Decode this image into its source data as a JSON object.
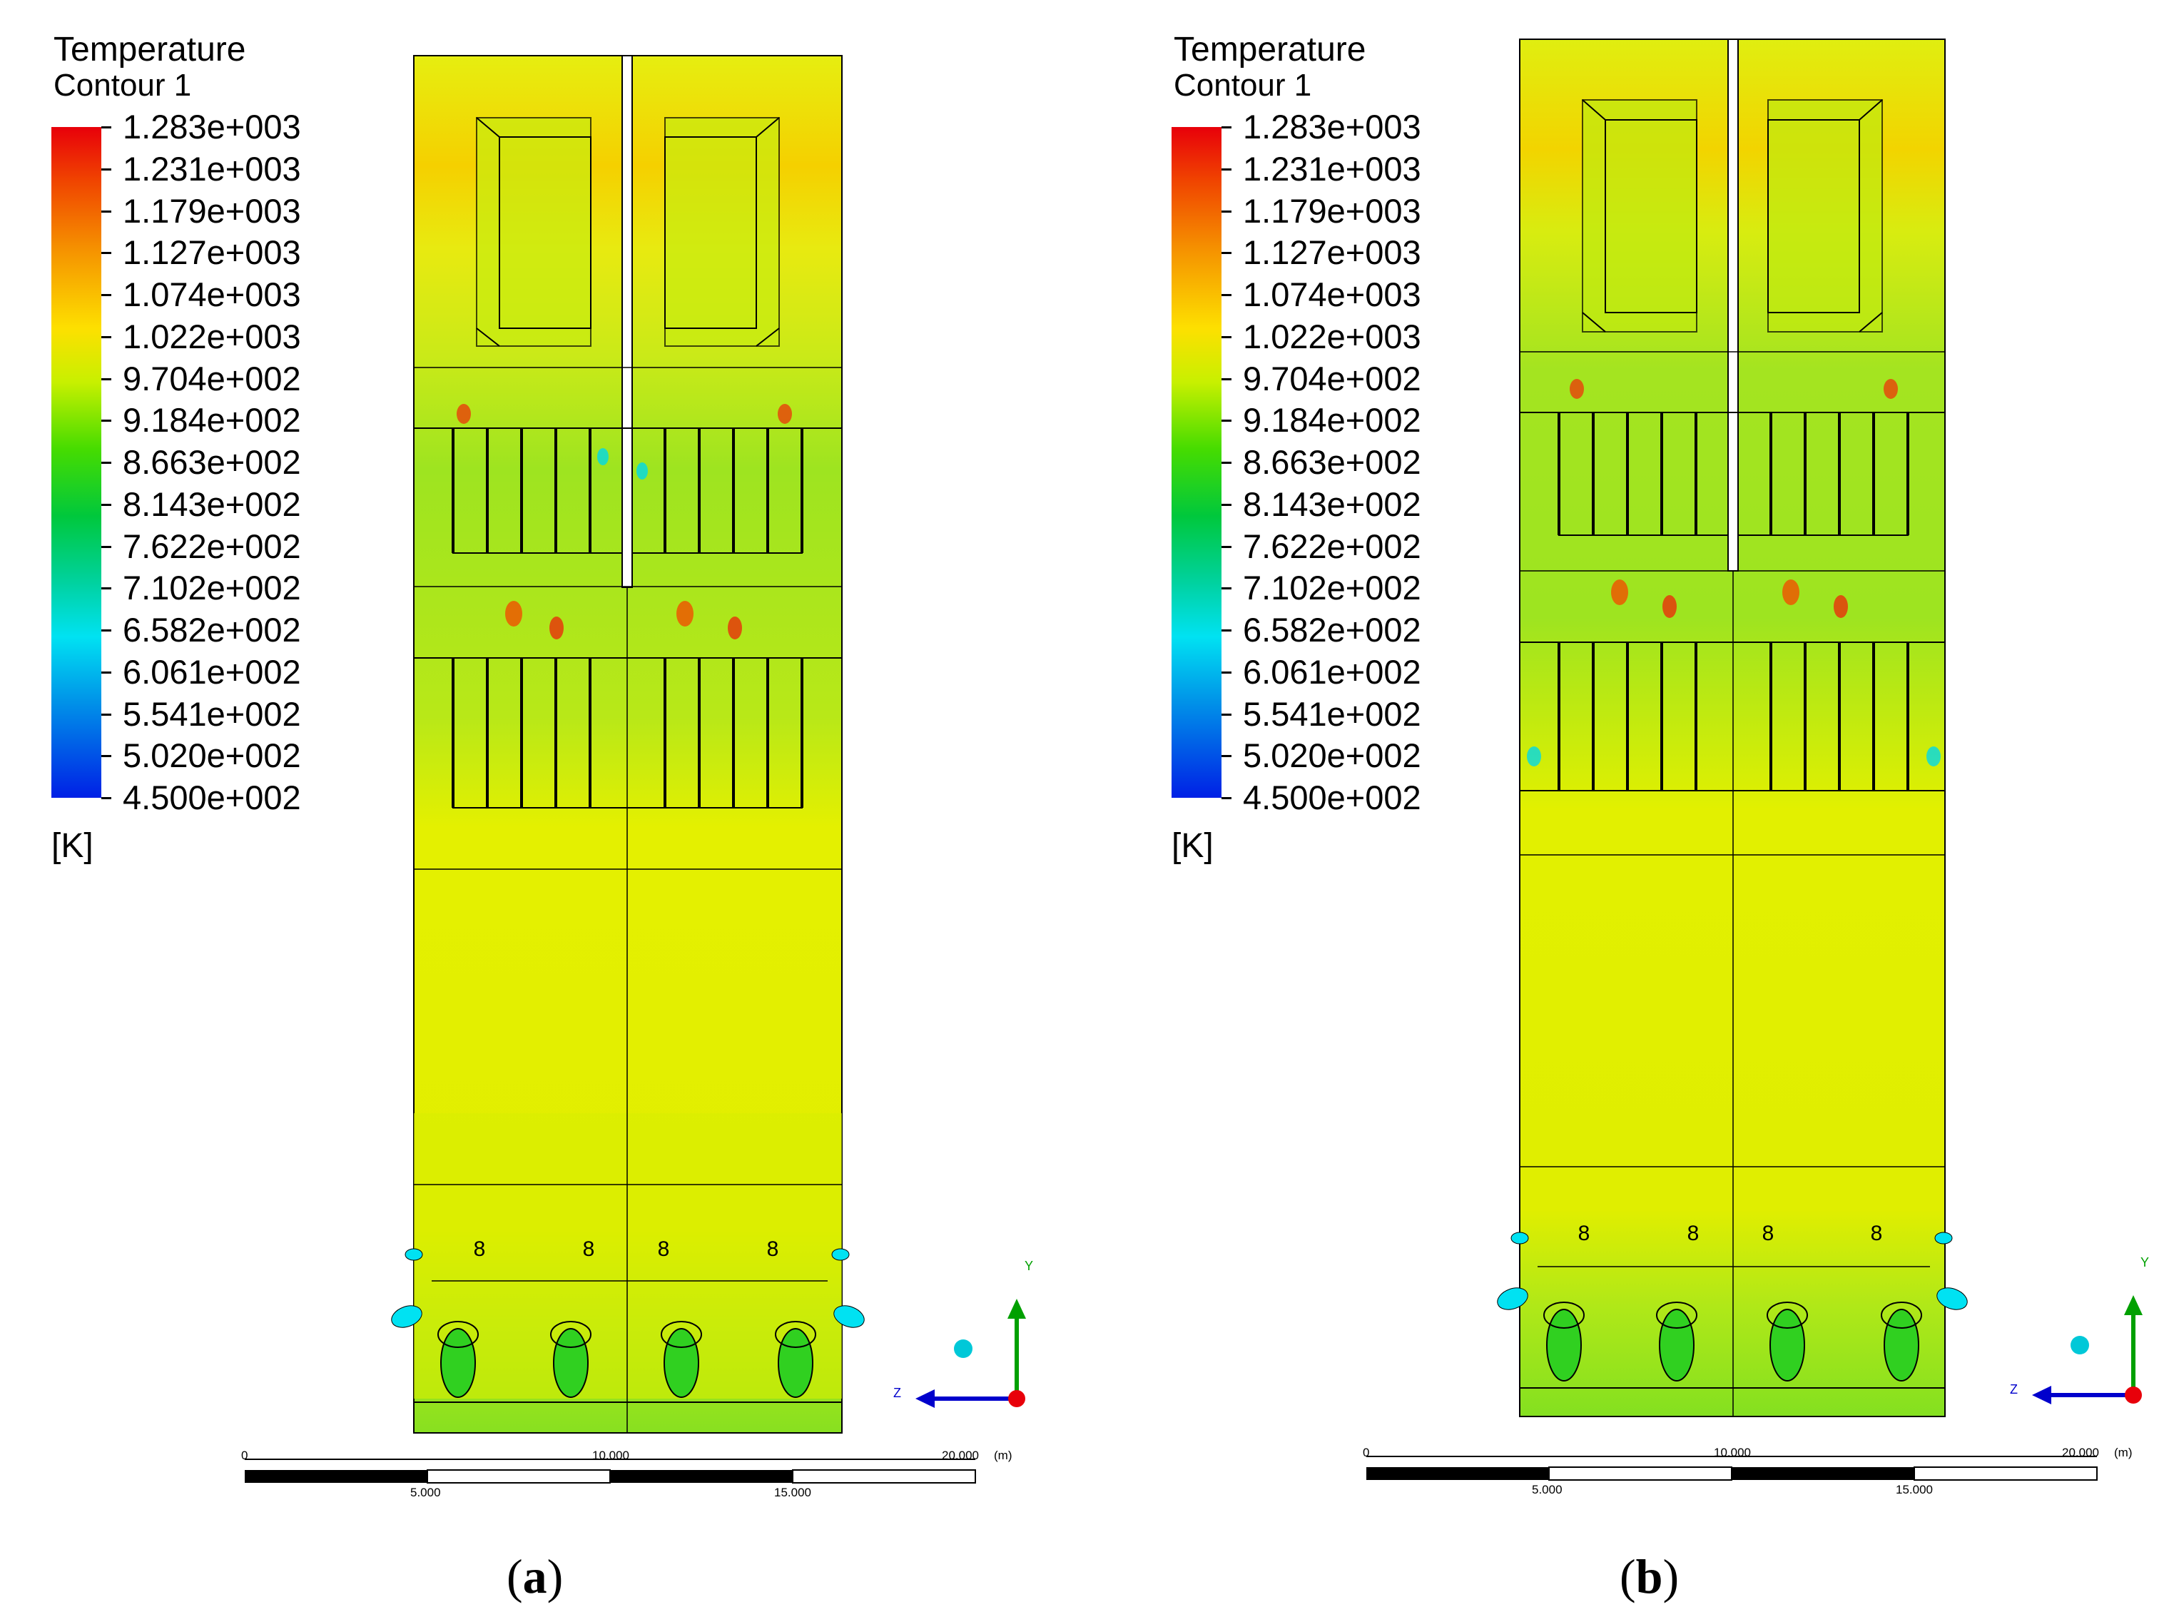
{
  "legend": {
    "title": "Temperature",
    "subtitle": "Contour 1",
    "unit": "[K]",
    "ticks": [
      "1.283e+003",
      "1.231e+003",
      "1.179e+003",
      "1.127e+003",
      "1.074e+003",
      "1.022e+003",
      "9.704e+002",
      "9.184e+002",
      "8.663e+002",
      "8.143e+002",
      "7.622e+002",
      "7.102e+002",
      "6.582e+002",
      "6.061e+002",
      "5.541e+002",
      "5.020e+002",
      "4.500e+002"
    ],
    "colors": [
      "#e8000a",
      "#f04400",
      "#f59000",
      "#fde000",
      "#c8f000",
      "#46dc00",
      "#00c83c",
      "#00d2a0",
      "#00e2f2",
      "#0090e8",
      "#0020e6"
    ]
  },
  "scale_bar": {
    "top_labels": [
      "0",
      "10.000",
      "20.000"
    ],
    "unit": "(m)",
    "bottom_labels": [
      "5.000",
      "15.000"
    ]
  },
  "axes": {
    "y": "Y",
    "z": "Z"
  },
  "burner_symbol": "8",
  "panels": [
    {
      "label_open": "(",
      "label_letter": "a",
      "label_close": ")"
    },
    {
      "label_open": "(",
      "label_letter": "b",
      "label_close": ")"
    }
  ],
  "colors": {
    "field_yellow": "#e6f000",
    "field_green": "#a8e810",
    "accent_red": "#e8000a",
    "accent_cyan": "#00e2f2",
    "axis_green": "#00a000",
    "axis_blue": "#0000cc"
  }
}
